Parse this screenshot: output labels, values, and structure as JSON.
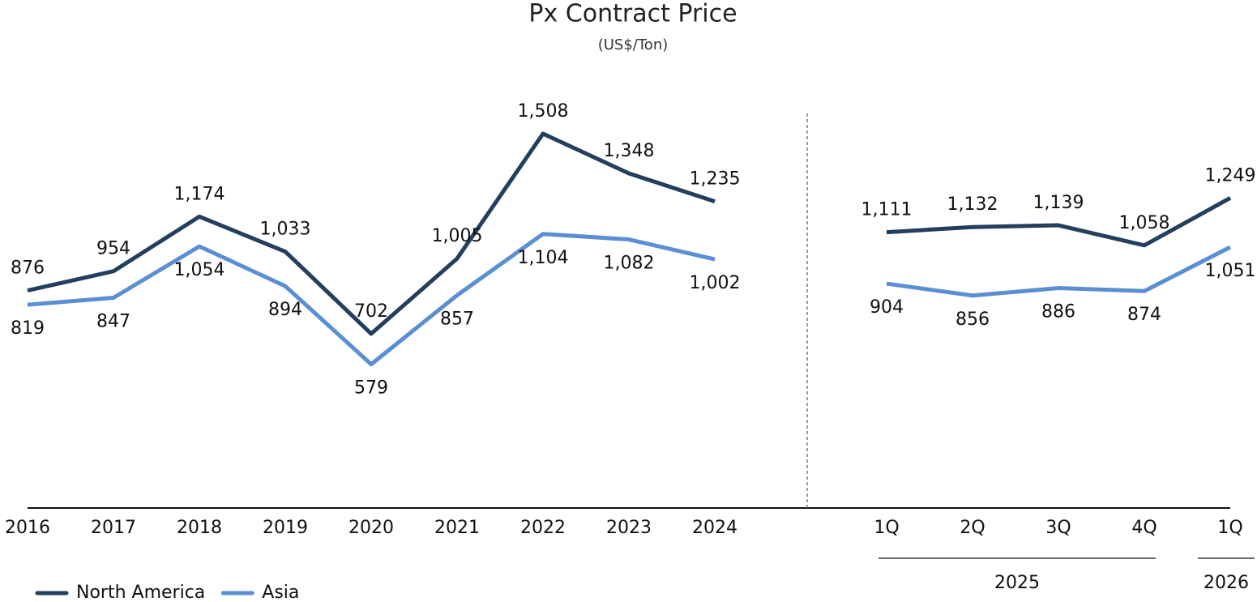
{
  "chart_data": {
    "type": "line",
    "title": "Px Contract Price",
    "subtitle": "(US$/Ton)",
    "categories": [
      "2016",
      "2017",
      "2018",
      "2019",
      "2020",
      "2021",
      "2022",
      "2023",
      "2024",
      null,
      "1Q",
      "2Q",
      "3Q",
      "4Q",
      "1Q"
    ],
    "group_labels": [
      "2025",
      "2026"
    ],
    "series": [
      {
        "name": "North America",
        "color": "#243f5e",
        "values": [
          876,
          954,
          1174,
          1033,
          702,
          1005,
          1508,
          1348,
          1235,
          null,
          1111,
          1132,
          1139,
          1058,
          1249
        ],
        "value_labels": [
          "876",
          "954",
          "1,174",
          "1,033",
          "702",
          "1,005",
          "1,508",
          "1,348",
          "1,235",
          null,
          "1,111",
          "1,132",
          "1,139",
          "1,058",
          "1,249"
        ]
      },
      {
        "name": "Asia",
        "color": "#5b8fd4",
        "values": [
          819,
          847,
          1054,
          894,
          579,
          857,
          1104,
          1082,
          1002,
          null,
          904,
          856,
          886,
          874,
          1051
        ],
        "value_labels": [
          "819",
          "847",
          "1,054",
          "894",
          "579",
          "857",
          "1,104",
          "1,082",
          "1,002",
          null,
          "904",
          "856",
          "886",
          "874",
          "1,051"
        ]
      }
    ],
    "legend": "bottom-left"
  }
}
